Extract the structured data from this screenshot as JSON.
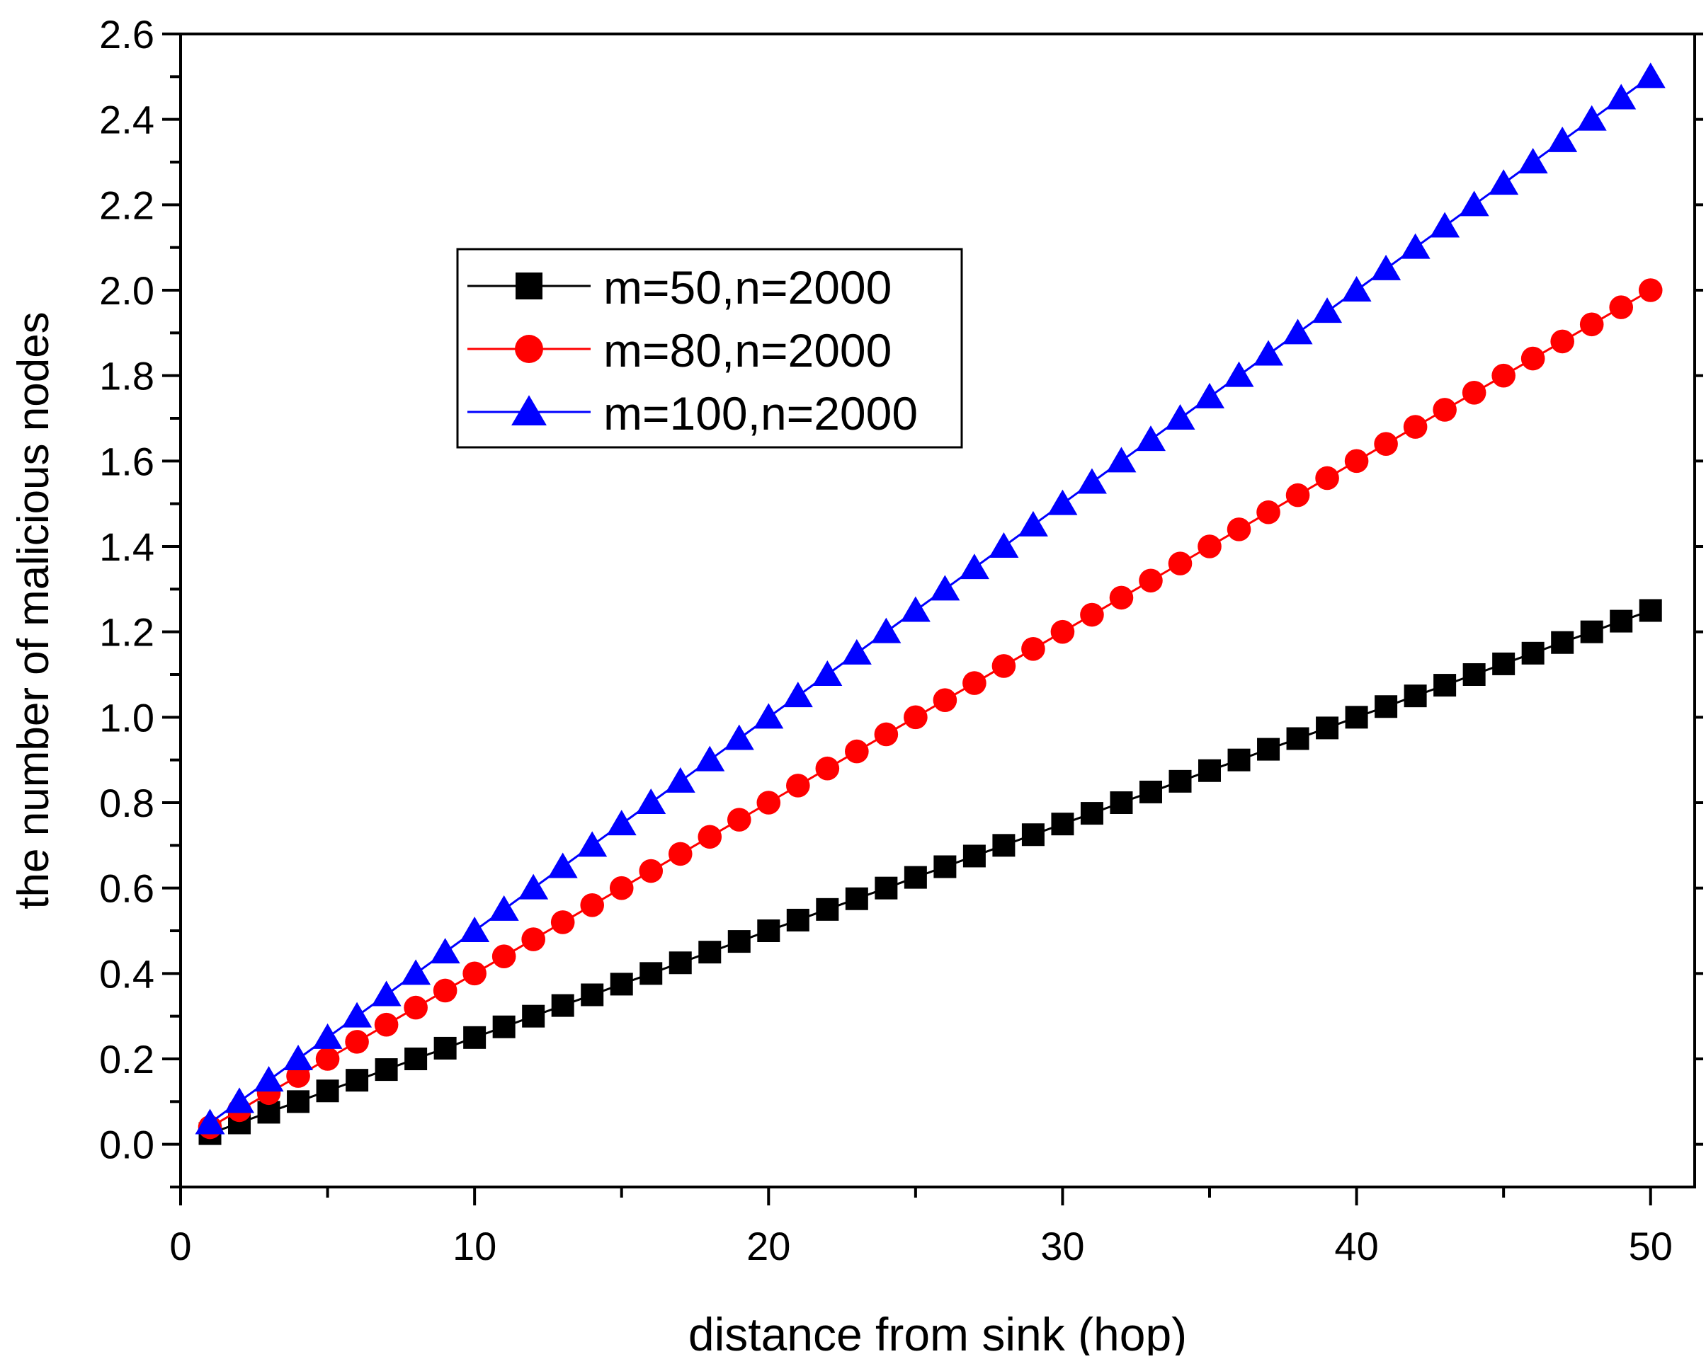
{
  "chart_data": {
    "type": "line",
    "title": "",
    "xlabel": "distance from sink  (hop)",
    "ylabel": "the number of malicious nodes",
    "xlim": [
      0,
      51.5
    ],
    "ylim": [
      -0.1,
      2.6
    ],
    "xticks": [
      0,
      10,
      20,
      30,
      40,
      50
    ],
    "xtick_labels": [
      "0",
      "10",
      "20",
      "30",
      "40",
      "50"
    ],
    "yticks": [
      0.0,
      0.2,
      0.4,
      0.6,
      0.8,
      1.0,
      1.2,
      1.4,
      1.6,
      1.8,
      2.0,
      2.2,
      2.4,
      2.6
    ],
    "ytick_labels": [
      "0.0",
      "0.2",
      "0.4",
      "0.6",
      "0.8",
      "1.0",
      "1.2",
      "1.4",
      "1.6",
      "1.8",
      "2.0",
      "2.2",
      "2.4",
      "2.6"
    ],
    "legend_position": "upper-left-center",
    "grid": false,
    "x": [
      1,
      2,
      3,
      4,
      5,
      6,
      7,
      8,
      9,
      10,
      11,
      12,
      13,
      14,
      15,
      16,
      17,
      18,
      19,
      20,
      21,
      22,
      23,
      24,
      25,
      26,
      27,
      28,
      29,
      30,
      31,
      32,
      33,
      34,
      35,
      36,
      37,
      38,
      39,
      40,
      41,
      42,
      43,
      44,
      45,
      46,
      47,
      48,
      49,
      50
    ],
    "series": [
      {
        "name": "m=50,n=2000",
        "color": "#000000",
        "marker": "square",
        "values": [
          0.025,
          0.05,
          0.075,
          0.1,
          0.125,
          0.15,
          0.175,
          0.2,
          0.225,
          0.25,
          0.275,
          0.3,
          0.325,
          0.35,
          0.375,
          0.4,
          0.425,
          0.45,
          0.475,
          0.5,
          0.525,
          0.55,
          0.575,
          0.6,
          0.625,
          0.65,
          0.675,
          0.7,
          0.725,
          0.75,
          0.775,
          0.8,
          0.825,
          0.85,
          0.875,
          0.9,
          0.925,
          0.95,
          0.975,
          1.0,
          1.025,
          1.05,
          1.075,
          1.1,
          1.125,
          1.15,
          1.175,
          1.2,
          1.225,
          1.25
        ]
      },
      {
        "name": "m=80,n=2000",
        "color": "#ff0000",
        "marker": "circle",
        "values": [
          0.04,
          0.08,
          0.12,
          0.16,
          0.2,
          0.24,
          0.28,
          0.32,
          0.36,
          0.4,
          0.44,
          0.48,
          0.52,
          0.56,
          0.6,
          0.64,
          0.68,
          0.72,
          0.76,
          0.8,
          0.84,
          0.88,
          0.92,
          0.96,
          1.0,
          1.04,
          1.08,
          1.12,
          1.16,
          1.2,
          1.24,
          1.28,
          1.32,
          1.36,
          1.4,
          1.44,
          1.48,
          1.52,
          1.56,
          1.6,
          1.64,
          1.68,
          1.72,
          1.76,
          1.8,
          1.84,
          1.88,
          1.92,
          1.96,
          2.0
        ]
      },
      {
        "name": "m=100,n=2000",
        "color": "#0000ff",
        "marker": "triangle",
        "values": [
          0.05,
          0.1,
          0.15,
          0.2,
          0.25,
          0.3,
          0.35,
          0.4,
          0.45,
          0.5,
          0.55,
          0.6,
          0.65,
          0.7,
          0.75,
          0.8,
          0.85,
          0.9,
          0.95,
          1.0,
          1.05,
          1.1,
          1.15,
          1.2,
          1.25,
          1.3,
          1.35,
          1.4,
          1.45,
          1.5,
          1.55,
          1.6,
          1.65,
          1.7,
          1.75,
          1.8,
          1.85,
          1.9,
          1.95,
          2.0,
          2.05,
          2.1,
          2.15,
          2.2,
          2.25,
          2.3,
          2.35,
          2.4,
          2.45,
          2.5
        ]
      }
    ]
  }
}
